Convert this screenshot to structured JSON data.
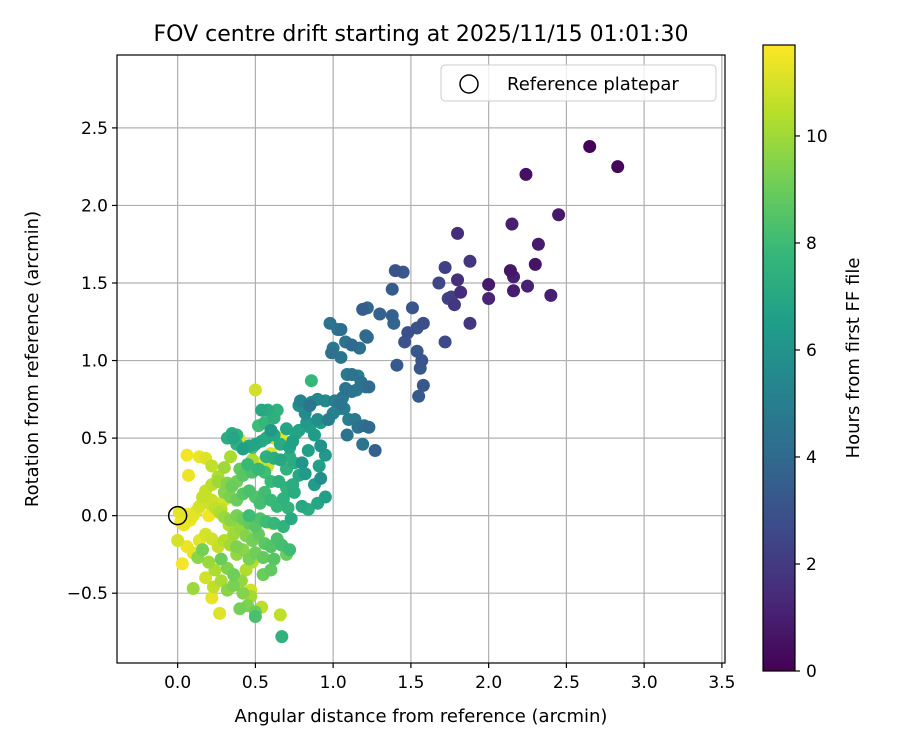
{
  "chart_data": {
    "type": "scatter",
    "title": "FOV centre drift starting at 2025/11/15 01:01:30",
    "xlabel": "Angular distance from reference (arcmin)",
    "ylabel": "Rotation from reference (arcmin)",
    "xlim": [
      -0.39,
      3.52
    ],
    "ylim": [
      -0.95,
      2.97
    ],
    "grid": true,
    "x_ticks": [
      0.0,
      0.5,
      1.0,
      1.5,
      2.0,
      2.5,
      3.0,
      3.5
    ],
    "x_tick_labels": [
      "0.0",
      "0.5",
      "1.0",
      "1.5",
      "2.0",
      "2.5",
      "3.0",
      "3.5"
    ],
    "y_ticks": [
      -0.5,
      0.0,
      0.5,
      1.0,
      1.5,
      2.0,
      2.5
    ],
    "y_tick_labels": [
      "−0.5",
      "0.0",
      "0.5",
      "1.0",
      "1.5",
      "2.0",
      "2.5"
    ],
    "legend": {
      "position": "top-right",
      "entries": [
        {
          "label": "Reference platepar",
          "marker": "open-circle"
        }
      ]
    },
    "reference_point": {
      "x": 0.0,
      "y": 0.0,
      "label": "Reference platepar"
    },
    "colorbar": {
      "label": "Hours from first FF file",
      "range": [
        0,
        11.7
      ],
      "ticks": [
        0,
        2,
        4,
        6,
        8,
        10
      ],
      "tick_labels": [
        "0",
        "2",
        "4",
        "6",
        "8",
        "10"
      ],
      "colormap": "viridis",
      "colormap_stops": [
        "#440154",
        "#482878",
        "#3e4989",
        "#31688e",
        "#26828e",
        "#1f9e89",
        "#35b779",
        "#6ece58",
        "#b5de2b",
        "#fde725"
      ]
    },
    "columns": [
      "x",
      "y",
      "hours"
    ],
    "points": [
      [
        2.65,
        2.38,
        0.1
      ],
      [
        2.83,
        2.25,
        0.2
      ],
      [
        2.24,
        2.2,
        0.5
      ],
      [
        2.45,
        1.94,
        0.8
      ],
      [
        2.15,
        1.88,
        1.0
      ],
      [
        2.32,
        1.75,
        0.9
      ],
      [
        2.14,
        1.58,
        0.7
      ],
      [
        2.3,
        1.62,
        0.6
      ],
      [
        2.16,
        1.54,
        1.0
      ],
      [
        2.25,
        1.48,
        1.1
      ],
      [
        2.16,
        1.45,
        0.9
      ],
      [
        2.4,
        1.42,
        1.0
      ],
      [
        2.0,
        1.49,
        0.8
      ],
      [
        2.0,
        1.4,
        1.2
      ],
      [
        1.8,
        1.82,
        1.5
      ],
      [
        1.88,
        1.64,
        1.8
      ],
      [
        1.72,
        1.6,
        2.3
      ],
      [
        1.8,
        1.52,
        1.6
      ],
      [
        1.82,
        1.44,
        1.5
      ],
      [
        1.76,
        1.41,
        2.2
      ],
      [
        1.74,
        1.4,
        2.4
      ],
      [
        1.78,
        1.36,
        1.9
      ],
      [
        1.68,
        1.5,
        2.5
      ],
      [
        1.88,
        1.24,
        1.8
      ],
      [
        1.72,
        1.12,
        2.6
      ],
      [
        1.58,
        1.24,
        2.8
      ],
      [
        1.54,
        1.21,
        3.0
      ],
      [
        1.48,
        1.18,
        2.9
      ],
      [
        1.46,
        1.12,
        3.0
      ],
      [
        1.54,
        1.06,
        3.2
      ],
      [
        1.57,
        1.0,
        3.1
      ],
      [
        1.56,
        0.95,
        3.2
      ],
      [
        1.58,
        0.84,
        3.2
      ],
      [
        1.55,
        0.77,
        3.3
      ],
      [
        1.41,
        0.97,
        3.3
      ],
      [
        1.51,
        1.34,
        3.1
      ],
      [
        1.38,
        1.46,
        3.4
      ],
      [
        1.4,
        1.58,
        3.0
      ],
      [
        1.45,
        1.57,
        3.2
      ],
      [
        1.38,
        1.29,
        3.6
      ],
      [
        1.39,
        1.24,
        3.8
      ],
      [
        1.3,
        1.3,
        3.6
      ],
      [
        1.22,
        1.34,
        3.9
      ],
      [
        1.19,
        1.33,
        3.5
      ],
      [
        1.21,
        1.16,
        4.1
      ],
      [
        1.22,
        1.15,
        4.0
      ],
      [
        1.17,
        1.08,
        4.3
      ],
      [
        1.12,
        1.1,
        4.0
      ],
      [
        1.08,
        1.12,
        4.5
      ],
      [
        1.05,
        1.2,
        4.2
      ],
      [
        0.98,
        1.24,
        4.4
      ],
      [
        1.03,
        1.2,
        4.6
      ],
      [
        1.0,
        1.08,
        4.7
      ],
      [
        0.99,
        1.05,
        4.3
      ],
      [
        1.05,
        1.02,
        4.6
      ],
      [
        1.09,
        0.91,
        4.8
      ],
      [
        1.12,
        0.91,
        4.4
      ],
      [
        1.16,
        0.9,
        4.9
      ],
      [
        1.15,
        0.81,
        4.9
      ],
      [
        1.18,
        0.86,
        4.5
      ],
      [
        1.12,
        0.8,
        4.5
      ],
      [
        1.08,
        0.82,
        4.4
      ],
      [
        1.06,
        0.76,
        4.7
      ],
      [
        1.01,
        0.74,
        4.9
      ],
      [
        1.05,
        0.72,
        4.6
      ],
      [
        1.21,
        0.83,
        4.3
      ],
      [
        1.23,
        0.83,
        4.1
      ],
      [
        1.2,
        0.58,
        4.2
      ],
      [
        1.23,
        0.57,
        4.0
      ],
      [
        1.16,
        0.57,
        4.4
      ],
      [
        1.09,
        0.52,
        4.5
      ],
      [
        1.19,
        0.46,
        4.6
      ],
      [
        1.27,
        0.42,
        3.6
      ],
      [
        1.14,
        0.62,
        4.8
      ],
      [
        1.1,
        0.62,
        5.1
      ],
      [
        1.07,
        0.69,
        5.0
      ],
      [
        1.04,
        0.69,
        5.3
      ],
      [
        1.0,
        0.66,
        5.2
      ],
      [
        0.97,
        0.62,
        5.0
      ],
      [
        0.95,
        0.74,
        5.5
      ],
      [
        0.9,
        0.75,
        5.4
      ],
      [
        0.86,
        0.73,
        5.7
      ],
      [
        0.85,
        0.71,
        4.6
      ],
      [
        0.82,
        0.66,
        5.6
      ],
      [
        0.79,
        0.74,
        5.2
      ],
      [
        0.78,
        0.71,
        5.8
      ],
      [
        0.83,
        0.6,
        6.2
      ],
      [
        0.9,
        0.62,
        5.8
      ],
      [
        0.92,
        0.6,
        6.5
      ],
      [
        0.85,
        0.57,
        6.6
      ],
      [
        0.88,
        0.52,
        6.4
      ],
      [
        0.92,
        0.45,
        6.0
      ],
      [
        0.95,
        0.39,
        6.2
      ],
      [
        0.91,
        0.32,
        6.6
      ],
      [
        0.92,
        0.24,
        5.8
      ],
      [
        0.88,
        0.2,
        6.4
      ],
      [
        0.82,
        0.27,
        6.3
      ],
      [
        0.8,
        0.34,
        6.1
      ],
      [
        0.84,
        0.42,
        6.6
      ],
      [
        0.86,
        0.87,
        7.8
      ],
      [
        0.78,
        0.55,
        6.7
      ],
      [
        0.76,
        0.53,
        7.0
      ],
      [
        0.7,
        0.56,
        6.8
      ],
      [
        0.74,
        0.48,
        6.6
      ],
      [
        0.72,
        0.44,
        6.7
      ],
      [
        0.66,
        0.46,
        7.1
      ],
      [
        0.62,
        0.52,
        6.9
      ],
      [
        0.6,
        0.55,
        6.2
      ],
      [
        0.57,
        0.5,
        7.0
      ],
      [
        0.54,
        0.48,
        7.1
      ],
      [
        0.5,
        0.46,
        6.8
      ],
      [
        0.46,
        0.45,
        6.9
      ],
      [
        0.42,
        0.43,
        6.6
      ],
      [
        0.38,
        0.46,
        7.5
      ],
      [
        0.36,
        0.5,
        6.9
      ],
      [
        0.35,
        0.53,
        7.1
      ],
      [
        0.32,
        0.5,
        7.3
      ],
      [
        0.38,
        0.52,
        7.6
      ],
      [
        0.54,
        0.68,
        7.0
      ],
      [
        0.58,
        0.68,
        7.2
      ],
      [
        0.62,
        0.63,
        7.4
      ],
      [
        0.64,
        0.68,
        7.5
      ],
      [
        0.56,
        0.6,
        7.8
      ],
      [
        0.52,
        0.58,
        8.0
      ],
      [
        0.48,
        0.44,
        8.0
      ],
      [
        0.57,
        0.38,
        7.4
      ],
      [
        0.62,
        0.37,
        7.2
      ],
      [
        0.66,
        0.36,
        7.0
      ],
      [
        0.72,
        0.38,
        7.3
      ],
      [
        0.75,
        0.34,
        7.2
      ],
      [
        0.7,
        0.3,
        7.5
      ],
      [
        0.78,
        0.26,
        7.0
      ],
      [
        0.74,
        0.2,
        7.3
      ],
      [
        0.7,
        0.18,
        7.6
      ],
      [
        0.65,
        0.22,
        7.4
      ],
      [
        0.6,
        0.22,
        7.9
      ],
      [
        0.56,
        0.28,
        8.1
      ],
      [
        0.52,
        0.3,
        7.8
      ],
      [
        0.48,
        0.28,
        8.3
      ],
      [
        0.45,
        0.33,
        7.9
      ],
      [
        0.42,
        0.26,
        8.6
      ],
      [
        0.4,
        0.3,
        8.9
      ],
      [
        0.38,
        0.22,
        9.2
      ],
      [
        0.35,
        0.19,
        9.0
      ],
      [
        0.32,
        0.21,
        9.5
      ],
      [
        0.26,
        0.22,
        10.0
      ],
      [
        0.3,
        0.15,
        9.5
      ],
      [
        0.34,
        0.12,
        9.3
      ],
      [
        0.38,
        0.1,
        9.0
      ],
      [
        0.42,
        0.14,
        8.6
      ],
      [
        0.46,
        0.16,
        8.3
      ],
      [
        0.5,
        0.12,
        8.4
      ],
      [
        0.53,
        0.08,
        8.2
      ],
      [
        0.56,
        0.15,
        8.1
      ],
      [
        0.6,
        0.1,
        7.9
      ],
      [
        0.64,
        0.06,
        7.8
      ],
      [
        0.68,
        0.11,
        7.5
      ],
      [
        0.71,
        0.05,
        7.6
      ],
      [
        0.75,
        0.15,
        7.2
      ],
      [
        0.8,
        0.06,
        7.0
      ],
      [
        0.84,
        0.04,
        7.3
      ],
      [
        0.9,
        0.08,
        6.9
      ],
      [
        0.95,
        0.12,
        6.6
      ],
      [
        0.73,
        -0.02,
        7.1
      ],
      [
        0.68,
        -0.07,
        7.6
      ],
      [
        0.62,
        -0.05,
        7.8
      ],
      [
        0.57,
        -0.04,
        8.0
      ],
      [
        0.53,
        -0.02,
        8.4
      ],
      [
        0.5,
        -0.07,
        8.6
      ],
      [
        0.46,
        -0.05,
        8.9
      ],
      [
        0.42,
        -0.02,
        9.0
      ],
      [
        0.38,
        0.0,
        9.3
      ],
      [
        0.34,
        -0.03,
        9.6
      ],
      [
        0.3,
        -0.01,
        9.9
      ],
      [
        0.27,
        0.02,
        10.3
      ],
      [
        0.24,
        0.05,
        10.6
      ],
      [
        0.2,
        0.08,
        10.9
      ],
      [
        0.16,
        0.12,
        10.7
      ],
      [
        0.14,
        0.06,
        11.0
      ],
      [
        0.12,
        0.03,
        11.2
      ],
      [
        0.1,
        0.0,
        11.3
      ],
      [
        0.08,
        -0.03,
        11.4
      ],
      [
        0.06,
        0.01,
        11.5
      ],
      [
        0.04,
        -0.06,
        11.4
      ],
      [
        0.02,
        -0.04,
        11.6
      ],
      [
        0.01,
        0.02,
        11.2
      ],
      [
        0.18,
        0.16,
        10.7
      ],
      [
        0.22,
        0.2,
        10.5
      ],
      [
        0.26,
        0.25,
        10.3
      ],
      [
        0.22,
        0.32,
        10.6
      ],
      [
        0.18,
        0.37,
        11.1
      ],
      [
        0.14,
        0.38,
        11.4
      ],
      [
        0.06,
        0.39,
        11.5
      ],
      [
        0.07,
        0.26,
        11.4
      ],
      [
        0.22,
        0.1,
        10.8
      ],
      [
        0.28,
        0.04,
        10.6
      ],
      [
        0.33,
        -0.06,
        10.3
      ],
      [
        0.36,
        -0.12,
        10.0
      ],
      [
        0.4,
        -0.08,
        9.8
      ],
      [
        0.44,
        -0.13,
        9.5
      ],
      [
        0.48,
        -0.16,
        9.2
      ],
      [
        0.52,
        -0.12,
        8.9
      ],
      [
        0.56,
        -0.18,
        8.7
      ],
      [
        0.6,
        -0.2,
        8.5
      ],
      [
        0.64,
        -0.15,
        8.3
      ],
      [
        0.67,
        -0.19,
        8.2
      ],
      [
        0.72,
        -0.22,
        8.0
      ],
      [
        0.62,
        -0.28,
        8.6
      ],
      [
        0.6,
        -0.35,
        8.8
      ],
      [
        0.55,
        -0.27,
        8.9
      ],
      [
        0.5,
        -0.24,
        9.1
      ],
      [
        0.46,
        -0.28,
        9.3
      ],
      [
        0.42,
        -0.22,
        9.6
      ],
      [
        0.38,
        -0.25,
        9.8
      ],
      [
        0.34,
        -0.19,
        10.1
      ],
      [
        0.3,
        -0.16,
        10.4
      ],
      [
        0.26,
        -0.2,
        10.7
      ],
      [
        0.22,
        -0.15,
        10.9
      ],
      [
        0.18,
        -0.12,
        11.0
      ],
      [
        0.14,
        -0.16,
        11.2
      ],
      [
        0.1,
        -0.24,
        11.3
      ],
      [
        0.06,
        -0.2,
        11.4
      ],
      [
        0.0,
        -0.16,
        11.0
      ],
      [
        0.03,
        -0.31,
        11.5
      ],
      [
        0.13,
        -0.27,
        9.6
      ],
      [
        0.16,
        -0.22,
        9.2
      ],
      [
        0.2,
        -0.3,
        9.9
      ],
      [
        0.24,
        -0.35,
        10.2
      ],
      [
        0.28,
        -0.28,
        9.0
      ],
      [
        0.32,
        -0.34,
        9.4
      ],
      [
        0.36,
        -0.38,
        9.1
      ],
      [
        0.41,
        -0.42,
        9.8
      ],
      [
        0.44,
        -0.35,
        10.3
      ],
      [
        0.48,
        -0.3,
        10.4
      ],
      [
        0.18,
        -0.4,
        10.9
      ],
      [
        0.23,
        -0.46,
        10.6
      ],
      [
        0.28,
        -0.42,
        10.2
      ],
      [
        0.32,
        -0.48,
        9.6
      ],
      [
        0.36,
        -0.45,
        9.3
      ],
      [
        0.42,
        -0.5,
        9.5
      ],
      [
        0.47,
        -0.52,
        10.1
      ],
      [
        0.22,
        -0.53,
        11.3
      ],
      [
        0.27,
        -0.63,
        11.1
      ],
      [
        0.4,
        -0.6,
        9.2
      ],
      [
        0.45,
        -0.58,
        9.4
      ],
      [
        0.5,
        -0.62,
        9.0
      ],
      [
        0.54,
        -0.59,
        10.5
      ],
      [
        0.5,
        -0.65,
        8.3
      ],
      [
        0.47,
        -0.48,
        10.9
      ],
      [
        0.1,
        -0.47,
        9.9
      ],
      [
        0.66,
        -0.64,
        10.6
      ],
      [
        0.67,
        -0.78,
        7.5
      ],
      [
        0.5,
        0.81,
        10.9
      ],
      [
        0.4,
        0.49,
        11.1
      ],
      [
        0.34,
        0.38,
        10.2
      ],
      [
        0.3,
        0.31,
        10.0
      ],
      [
        0.58,
        0.51,
        11.3
      ],
      [
        0.62,
        0.5,
        11.0
      ],
      [
        0.67,
        0.5,
        11.2
      ],
      [
        0.55,
        0.35,
        11.4
      ],
      [
        0.58,
        0.32,
        10.8
      ],
      [
        0.6,
        0.4,
        11.1
      ],
      [
        0.48,
        0.36,
        10.2
      ],
      [
        0.3,
        0.1,
        11.0
      ],
      [
        0.2,
        0.0,
        11.5
      ],
      [
        0.6,
        -0.05,
        11.2
      ],
      [
        0.38,
        -0.2,
        9.4
      ],
      [
        0.46,
        0.0,
        8.0
      ],
      [
        0.55,
        -0.38,
        9.0
      ],
      [
        0.7,
        -0.25,
        9.0
      ]
    ]
  }
}
